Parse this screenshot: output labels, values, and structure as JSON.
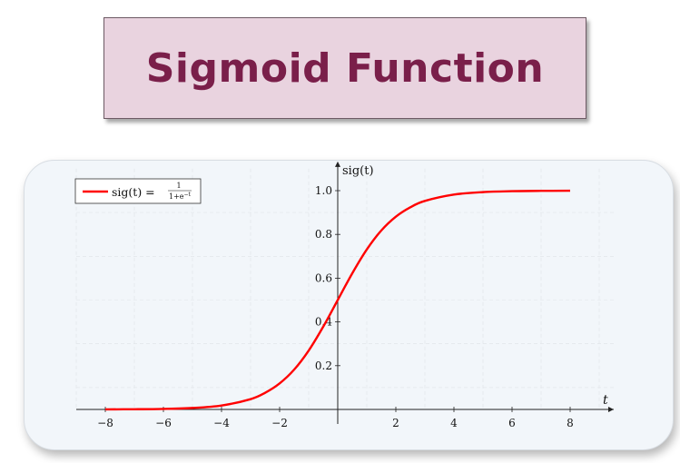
{
  "header": {
    "title": "Sigmoid Function"
  },
  "colors": {
    "curve": "#ff0000",
    "title_text": "#7a1f4a",
    "title_bg": "#e9d3df",
    "card_bg": "#f2f6fa"
  },
  "chart_data": {
    "type": "line",
    "xlabel": "t",
    "ylabel": "sig(t)",
    "xlim": [
      -9,
      9.5
    ],
    "ylim": [
      0,
      1.1
    ],
    "x_ticks": [
      -8,
      -6,
      -4,
      -2,
      2,
      4,
      6,
      8
    ],
    "x_tick_labels": [
      "−8",
      "−6",
      "−4",
      "−2",
      "2",
      "4",
      "6",
      "8"
    ],
    "y_ticks": [
      0.2,
      0.4,
      0.6,
      0.8,
      1.0
    ],
    "y_tick_labels": [
      "0.2",
      "0.4",
      "0.6",
      "0.8",
      "1.0"
    ],
    "grid": true,
    "legend_position": "top-left",
    "legend": {
      "prefix": "sig(t) = ",
      "numerator": "1",
      "denominator": "1+e",
      "exponent": "−t"
    },
    "series": [
      {
        "color": "#ff0000",
        "x": [
          -8,
          -7,
          -6,
          -5,
          -4,
          -3,
          -2.5,
          -2,
          -1.5,
          -1,
          -0.5,
          0,
          0.5,
          1,
          1.5,
          2,
          2.5,
          3,
          4,
          5,
          6,
          7,
          8
        ],
        "y": [
          0.0003,
          0.0009,
          0.0025,
          0.0067,
          0.018,
          0.047,
          0.076,
          0.119,
          0.182,
          0.269,
          0.378,
          0.5,
          0.622,
          0.731,
          0.818,
          0.881,
          0.924,
          0.953,
          0.982,
          0.9933,
          0.9975,
          0.9991,
          0.9997
        ]
      }
    ]
  }
}
